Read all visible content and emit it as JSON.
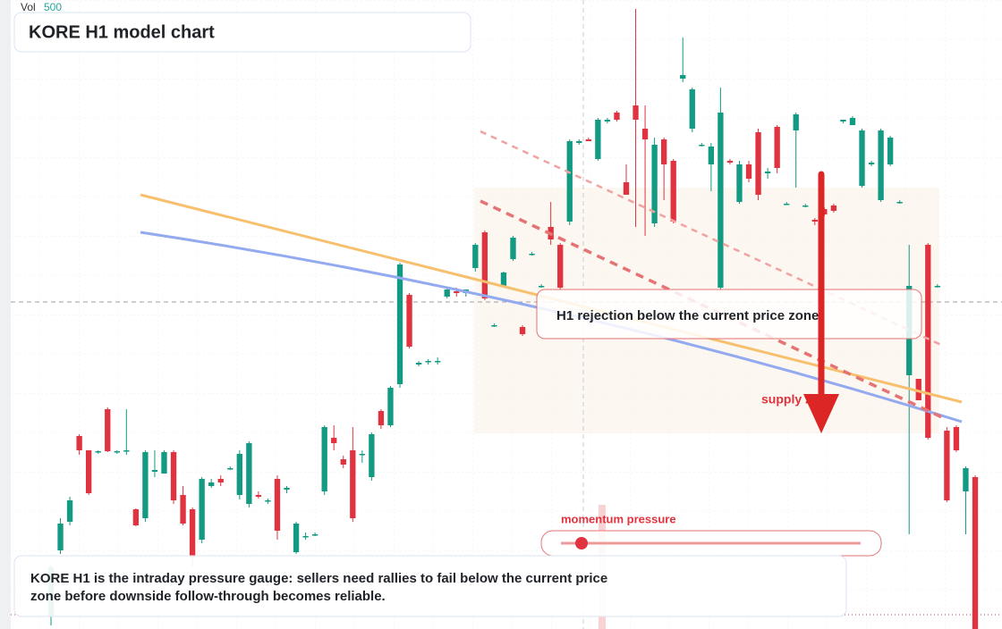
{
  "chart_data": {
    "type": "candlestick",
    "title": "KORE H1 model chart",
    "volume_legend": {
      "label": "Vol",
      "value": 500
    },
    "annotation": "H1 rejection below the current price zone",
    "zone_label": "supply zone",
    "gauge_label": "momentum pressure",
    "caption": [
      "KORE H1 is the intraday pressure gauge: sellers need rallies to fail below the current price",
      "zone before downside follow-through becomes reliable."
    ],
    "up_color": "#129a83",
    "down_color": "#e0333f",
    "ylim": [
      0,
      704
    ],
    "categories": [
      null,
      null,
      null,
      null,
      null,
      null,
      null,
      null,
      null,
      null,
      null,
      null,
      null,
      null,
      null,
      null,
      null,
      null,
      null,
      null,
      null,
      null,
      null,
      null,
      null,
      null,
      null,
      null,
      null,
      null,
      null,
      null,
      null,
      null,
      null,
      null,
      null,
      null,
      null,
      null,
      null,
      null,
      null,
      null,
      null,
      null,
      null,
      null,
      null,
      null,
      null,
      null,
      null,
      null,
      null,
      null,
      null,
      null,
      null,
      null,
      null,
      null,
      null,
      null,
      null,
      null,
      null,
      null,
      null,
      null,
      null,
      null,
      null,
      null,
      null,
      null,
      null,
      null,
      null,
      null,
      null,
      null,
      null,
      null,
      null,
      null,
      null,
      null,
      null,
      null,
      null,
      null,
      null,
      null,
      null,
      null,
      null,
      null,
      null
    ],
    "open": [
      14,
      88,
      120,
      216,
      200,
      198,
      246,
      198,
      200,
      134,
      124,
      176,
      174,
      198,
      150,
      134,
      100,
      160,
      168,
      180,
      150,
      140,
      150,
      144,
      168,
      156,
      86,
      104,
      106,
      154,
      214,
      190,
      200,
      196,
      170,
      244,
      228,
      274,
      374,
      296,
      300,
      300,
      372,
      378,
      376,
      404,
      444,
      340,
      384,
      414,
      338,
      420,
      384,
      450,
      430,
      456,
      544,
      548,
      526,
      568,
      578,
      500,
      586,
      560,
      454,
      548,
      524,
      616,
      560,
      542,
      520,
      382,
      524,
      478,
      520,
      556,
      510,
      562,
      476,
      558,
      474,
      458,
      470,
      474,
      568,
      564,
      496,
      520,
      480,
      520,
      478,
      284,
      280,
      430,
      384,
      222,
      226,
      154,
      170
    ],
    "high": [
      72,
      124,
      148,
      218,
      200,
      200,
      248,
      200,
      246,
      135,
      200,
      200,
      200,
      200,
      160,
      136,
      170,
      168,
      172,
      182,
      200,
      210,
      154,
      146,
      172,
      160,
      120,
      108,
      108,
      228,
      228,
      194,
      226,
      200,
      220,
      246,
      272,
      410,
      376,
      300,
      302,
      304,
      382,
      382,
      380,
      432,
      446,
      342,
      400,
      440,
      340,
      422,
      386,
      478,
      432,
      548,
      548,
      550,
      572,
      572,
      580,
      520,
      694,
      586,
      550,
      550,
      526,
      662,
      606,
      544,
      544,
      606,
      526,
      524,
      524,
      560,
      516,
      564,
      478,
      578,
      476,
      460,
      472,
      476,
      570,
      574,
      560,
      524,
      560,
      552,
      480,
      430,
      280,
      432,
      386,
      226,
      228,
      182,
      172
    ],
    "low": [
      4,
      84,
      116,
      195,
      150,
      196,
      198,
      196,
      195,
      115,
      120,
      170,
      174,
      140,
      116,
      70,
      96,
      158,
      160,
      178,
      145,
      136,
      146,
      140,
      100,
      152,
      84,
      100,
      104,
      150,
      200,
      180,
      120,
      186,
      166,
      224,
      226,
      270,
      314,
      294,
      296,
      296,
      370,
      372,
      372,
      400,
      368,
      338,
      382,
      412,
      328,
      418,
      382,
      430,
      380,
      452,
      542,
      546,
      524,
      566,
      568,
      486,
      450,
      440,
      450,
      480,
      454,
      612,
      556,
      540,
      490,
      380,
      520,
      476,
      500,
      480,
      504,
      510,
      476,
      494,
      472,
      452,
      462,
      466,
      566,
      564,
      494,
      518,
      478,
      518,
      476,
      106,
      256,
      212,
      382,
      142,
      198,
      106,
      0
    ],
    "close": [
      69,
      118,
      144,
      200,
      152,
      199,
      199,
      199,
      200,
      116,
      198,
      178,
      198,
      144,
      118,
      80,
      168,
      164,
      164,
      180,
      196,
      208,
      148,
      144,
      110,
      158,
      118,
      104,
      106,
      226,
      208,
      184,
      124,
      196,
      218,
      228,
      270,
      408,
      316,
      298,
      300,
      300,
      380,
      376,
      380,
      430,
      370,
      340,
      399,
      438,
      330,
      420,
      384,
      436,
      382,
      546,
      546,
      546,
      570,
      570,
      570,
      486,
      570,
      548,
      542,
      520,
      456,
      620,
      604,
      542,
      540,
      578,
      522,
      520,
      504,
      486,
      512,
      516,
      476,
      576,
      474,
      456,
      464,
      468,
      570,
      572,
      558,
      522,
      558,
      550,
      478,
      384,
      256,
      214,
      384,
      144,
      200,
      180,
      0
    ]
  }
}
